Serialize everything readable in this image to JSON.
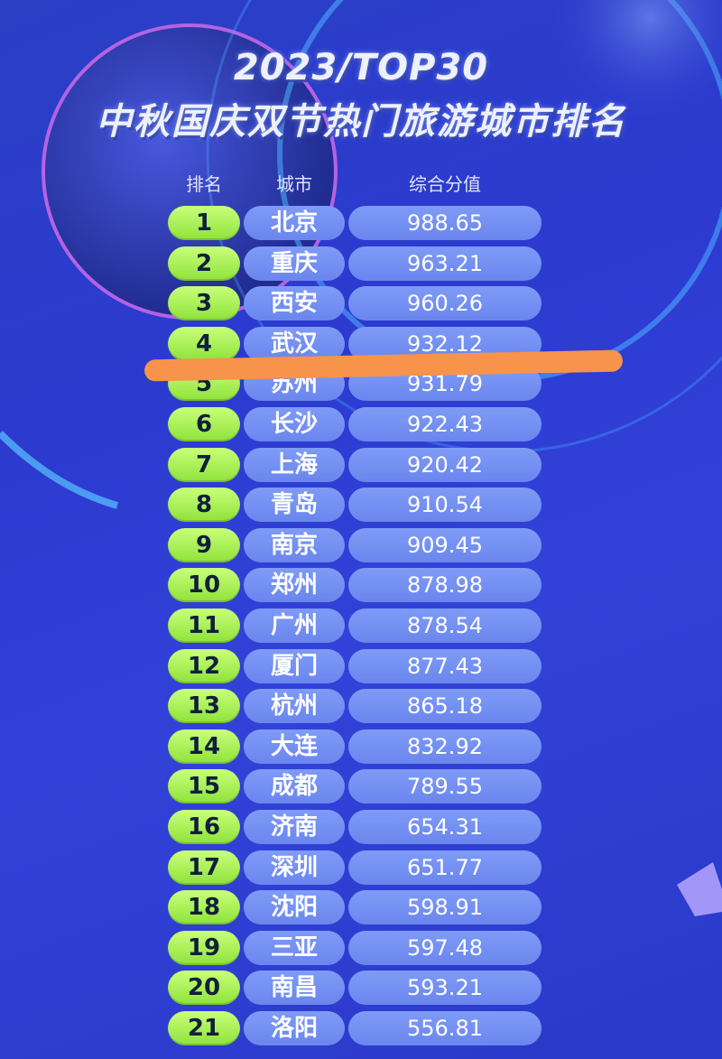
{
  "title": {
    "year": "2023/TOP30",
    "main": "中秋国庆双节热门旅游城市排名"
  },
  "headers": {
    "rank": "排名",
    "city": "城市",
    "score": "综合分值"
  },
  "colors": {
    "rank_pill": "#a8f04f",
    "city_pill": "#7893f3",
    "highlight": "#f7934a",
    "background": "#2c3ad0"
  },
  "rows": [
    {
      "rank": "1",
      "city": "北京",
      "score": "988.65"
    },
    {
      "rank": "2",
      "city": "重庆",
      "score": "963.21"
    },
    {
      "rank": "3",
      "city": "西安",
      "score": "960.26"
    },
    {
      "rank": "4",
      "city": "武汉",
      "score": "932.12"
    },
    {
      "rank": "5",
      "city": "苏州",
      "score": "931.79"
    },
    {
      "rank": "6",
      "city": "长沙",
      "score": "922.43"
    },
    {
      "rank": "7",
      "city": "上海",
      "score": "920.42"
    },
    {
      "rank": "8",
      "city": "青岛",
      "score": "910.54"
    },
    {
      "rank": "9",
      "city": "南京",
      "score": "909.45"
    },
    {
      "rank": "10",
      "city": "郑州",
      "score": "878.98"
    },
    {
      "rank": "11",
      "city": "广州",
      "score": "878.54"
    },
    {
      "rank": "12",
      "city": "厦门",
      "score": "877.43"
    },
    {
      "rank": "13",
      "city": "杭州",
      "score": "865.18"
    },
    {
      "rank": "14",
      "city": "大连",
      "score": "832.92"
    },
    {
      "rank": "15",
      "city": "成都",
      "score": "789.55"
    },
    {
      "rank": "16",
      "city": "济南",
      "score": "654.31"
    },
    {
      "rank": "17",
      "city": "深圳",
      "score": "651.77"
    },
    {
      "rank": "18",
      "city": "沈阳",
      "score": "598.91"
    },
    {
      "rank": "19",
      "city": "三亚",
      "score": "597.48"
    },
    {
      "rank": "20",
      "city": "南昌",
      "score": "593.21"
    },
    {
      "rank": "21",
      "city": "洛阳",
      "score": "556.81"
    }
  ]
}
